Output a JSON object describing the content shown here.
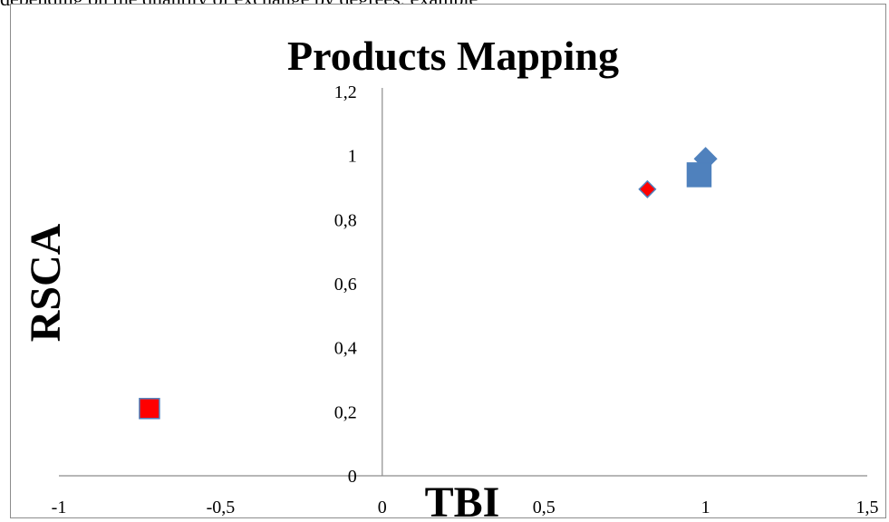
{
  "page": {
    "top_text": "depending on the quantity of exchange by degrees, example"
  },
  "chart_data": {
    "type": "scatter",
    "title": "Products Mapping",
    "xlabel": "TBI",
    "ylabel": "RSCA",
    "xlim": [
      -1,
      1.5
    ],
    "ylim": [
      0,
      1.2
    ],
    "x_ticks": [
      "-1",
      "-0,5",
      "0",
      "0,5",
      "1",
      "1,5"
    ],
    "y_ticks": [
      "0",
      "0,2",
      "0,4",
      "0,6",
      "0,8",
      "1",
      "1,2"
    ],
    "grid": false,
    "legend": "none",
    "series": [
      {
        "marker": "diamond",
        "color": "#4f81bd",
        "points": [
          [
            1.0,
            0.99
          ]
        ]
      },
      {
        "marker": "square",
        "color": "#4f81bd",
        "points": [
          [
            0.98,
            0.94
          ]
        ]
      },
      {
        "marker": "diamond",
        "color": "#ff0000",
        "stroke": "#4f81bd",
        "points": [
          [
            0.82,
            0.895
          ]
        ]
      },
      {
        "marker": "square",
        "color": "#ff0000",
        "stroke": "#4f81bd",
        "points": [
          [
            -0.72,
            0.21
          ]
        ]
      }
    ]
  }
}
